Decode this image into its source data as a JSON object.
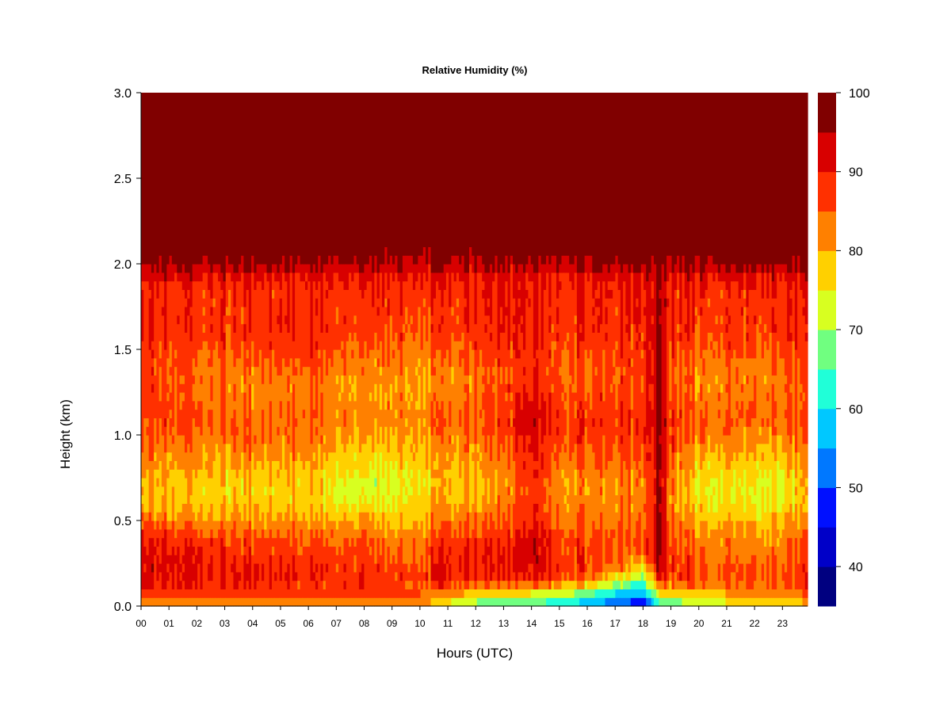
{
  "chart_data": {
    "type": "heatmap",
    "title": "Relative Humidity (%)",
    "xlabel": "Hours (UTC)",
    "ylabel": "Height (km)",
    "x_ticks": [
      "00",
      "01",
      "02",
      "03",
      "04",
      "05",
      "06",
      "07",
      "08",
      "09",
      "10",
      "11",
      "12",
      "13",
      "14",
      "15",
      "16",
      "17",
      "18",
      "19",
      "20",
      "21",
      "22",
      "23"
    ],
    "xlim": [
      0,
      23.9
    ],
    "y_ticks": [
      "0.0",
      "0.5",
      "1.0",
      "1.5",
      "2.0",
      "2.5",
      "3.0"
    ],
    "ylim": [
      0,
      3.0
    ],
    "colorbar": {
      "ticks": [
        "40",
        "50",
        "60",
        "70",
        "80",
        "90",
        "100"
      ],
      "range": [
        35,
        100
      ],
      "levels": [
        {
          "min": 35,
          "max": 40,
          "color": "#000080"
        },
        {
          "min": 40,
          "max": 45,
          "color": "#0000c8"
        },
        {
          "min": 45,
          "max": 50,
          "color": "#0010ff"
        },
        {
          "min": 50,
          "max": 55,
          "color": "#0078ff"
        },
        {
          "min": 55,
          "max": 60,
          "color": "#00c8ff"
        },
        {
          "min": 60,
          "max": 65,
          "color": "#20ffd8"
        },
        {
          "min": 65,
          "max": 70,
          "color": "#70ff80"
        },
        {
          "min": 70,
          "max": 75,
          "color": "#d8ff20"
        },
        {
          "min": 75,
          "max": 80,
          "color": "#ffd000"
        },
        {
          "min": 80,
          "max": 85,
          "color": "#ff8000"
        },
        {
          "min": 85,
          "max": 90,
          "color": "#ff3000"
        },
        {
          "min": 90,
          "max": 95,
          "color": "#d80000"
        },
        {
          "min": 95,
          "max": 100,
          "color": "#800000"
        }
      ]
    },
    "grid": false,
    "profile_heights_km": [
      0.0,
      0.05,
      0.1,
      0.15,
      0.2,
      0.3,
      0.4,
      0.5,
      0.6,
      0.7,
      0.8,
      0.9,
      1.0,
      1.1,
      1.2,
      1.3,
      1.4,
      1.5,
      1.6,
      1.7,
      1.8,
      1.9,
      2.0,
      2.1,
      2.2,
      3.0
    ],
    "profiles": [
      {
        "hour": 0,
        "rh": [
          78,
          86,
          90,
          92,
          92,
          92,
          90,
          84,
          80,
          80,
          82,
          84,
          86,
          87,
          88,
          88,
          88,
          89,
          90,
          90,
          89,
          90,
          96,
          100,
          100,
          100
        ]
      },
      {
        "hour": 2,
        "rh": [
          78,
          84,
          88,
          91,
          91,
          90,
          88,
          82,
          78,
          78,
          80,
          82,
          84,
          86,
          85,
          84,
          84,
          86,
          88,
          88,
          88,
          90,
          96,
          100,
          100,
          100
        ]
      },
      {
        "hour": 4,
        "rh": [
          80,
          84,
          88,
          90,
          90,
          88,
          86,
          81,
          78,
          77,
          79,
          82,
          84,
          84,
          82,
          82,
          83,
          86,
          88,
          88,
          88,
          89,
          96,
          100,
          100,
          100
        ]
      },
      {
        "hour": 6,
        "rh": [
          80,
          84,
          87,
          90,
          90,
          88,
          86,
          81,
          78,
          78,
          80,
          82,
          84,
          85,
          84,
          84,
          86,
          89,
          90,
          90,
          89,
          90,
          96,
          100,
          100,
          100
        ]
      },
      {
        "hour": 8,
        "rh": [
          80,
          84,
          87,
          88,
          88,
          86,
          84,
          80,
          74,
          72,
          74,
          77,
          80,
          82,
          81,
          80,
          82,
          84,
          86,
          87,
          88,
          90,
          95,
          99,
          100,
          100
        ]
      },
      {
        "hour": 9,
        "rh": [
          80,
          84,
          86,
          88,
          88,
          85,
          83,
          79,
          75,
          74,
          75,
          78,
          81,
          82,
          82,
          82,
          83,
          85,
          87,
          88,
          88,
          90,
          95,
          99,
          100,
          100
        ]
      },
      {
        "hour": 10,
        "rh": [
          82,
          84,
          86,
          88,
          88,
          86,
          84,
          80,
          78,
          77,
          78,
          80,
          82,
          83,
          82,
          81,
          82,
          84,
          86,
          87,
          88,
          90,
          95,
          99,
          100,
          100
        ]
      },
      {
        "hour": 11,
        "rh": [
          72,
          80,
          86,
          89,
          90,
          90,
          88,
          84,
          80,
          79,
          80,
          82,
          84,
          85,
          84,
          82,
          83,
          85,
          87,
          88,
          88,
          90,
          95,
          99,
          100,
          100
        ]
      },
      {
        "hour": 12,
        "rh": [
          66,
          74,
          82,
          88,
          90,
          90,
          88,
          84,
          80,
          79,
          80,
          82,
          85,
          86,
          85,
          84,
          85,
          87,
          88,
          89,
          89,
          90,
          95,
          99,
          100,
          100
        ]
      },
      {
        "hour": 13,
        "rh": [
          64,
          72,
          80,
          87,
          90,
          90,
          88,
          85,
          82,
          81,
          82,
          84,
          86,
          87,
          86,
          85,
          86,
          88,
          89,
          90,
          90,
          90,
          95,
          99,
          100,
          100
        ]
      },
      {
        "hour": 14,
        "rh": [
          62,
          70,
          80,
          88,
          92,
          94,
          93,
          90,
          88,
          88,
          89,
          90,
          92,
          93,
          92,
          90,
          89,
          89,
          90,
          90,
          90,
          90,
          96,
          100,
          100,
          100
        ]
      },
      {
        "hour": 15,
        "rh": [
          60,
          68,
          78,
          86,
          89,
          89,
          88,
          85,
          83,
          82,
          84,
          86,
          88,
          89,
          88,
          86,
          86,
          87,
          88,
          89,
          89,
          90,
          95,
          99,
          100,
          100
        ]
      },
      {
        "hour": 16,
        "rh": [
          55,
          62,
          72,
          82,
          86,
          87,
          86,
          84,
          82,
          82,
          83,
          85,
          87,
          88,
          87,
          85,
          85,
          87,
          88,
          89,
          89,
          90,
          96,
          100,
          100,
          100
        ]
      },
      {
        "hour": 17,
        "rh": [
          50,
          56,
          64,
          74,
          82,
          86,
          86,
          84,
          82,
          82,
          84,
          86,
          88,
          88,
          87,
          86,
          86,
          87,
          88,
          89,
          89,
          90,
          96,
          100,
          100,
          100
        ]
      },
      {
        "hour": 18,
        "rh": [
          44,
          52,
          58,
          66,
          74,
          84,
          86,
          84,
          82,
          82,
          84,
          86,
          88,
          89,
          88,
          87,
          87,
          88,
          89,
          90,
          90,
          91,
          96,
          100,
          100,
          100
        ]
      },
      {
        "hour": 18.6,
        "rh": [
          60,
          70,
          80,
          90,
          94,
          96,
          96,
          96,
          96,
          96,
          96,
          96,
          96,
          96,
          96,
          96,
          96,
          96,
          96,
          96,
          96,
          96,
          98,
          100,
          100,
          100
        ]
      },
      {
        "hour": 19,
        "rh": [
          64,
          72,
          80,
          86,
          88,
          88,
          86,
          84,
          82,
          82,
          84,
          86,
          88,
          88,
          87,
          86,
          86,
          87,
          88,
          89,
          89,
          90,
          96,
          100,
          100,
          100
        ]
      },
      {
        "hour": 20,
        "rh": [
          70,
          76,
          82,
          86,
          86,
          84,
          82,
          80,
          76,
          75,
          77,
          80,
          83,
          84,
          83,
          82,
          83,
          85,
          87,
          88,
          88,
          90,
          96,
          100,
          100,
          100
        ]
      },
      {
        "hour": 21,
        "rh": [
          72,
          78,
          82,
          86,
          86,
          84,
          82,
          79,
          76,
          76,
          78,
          81,
          84,
          85,
          84,
          83,
          84,
          86,
          88,
          88,
          88,
          90,
          96,
          100,
          100,
          100
        ]
      },
      {
        "hour": 22,
        "rh": [
          72,
          78,
          82,
          85,
          85,
          83,
          81,
          78,
          74,
          74,
          76,
          79,
          82,
          84,
          83,
          82,
          83,
          85,
          87,
          88,
          88,
          90,
          96,
          100,
          100,
          100
        ]
      },
      {
        "hour": 23,
        "rh": [
          74,
          80,
          84,
          86,
          86,
          84,
          82,
          80,
          76,
          75,
          77,
          80,
          83,
          85,
          84,
          84,
          85,
          87,
          88,
          89,
          89,
          90,
          96,
          100,
          100,
          100
        ]
      },
      {
        "hour": 23.9,
        "rh": [
          78,
          84,
          88,
          90,
          90,
          88,
          86,
          82,
          80,
          80,
          82,
          84,
          86,
          87,
          86,
          86,
          87,
          88,
          90,
          90,
          90,
          92,
          97,
          100,
          100,
          100
        ]
      }
    ]
  }
}
